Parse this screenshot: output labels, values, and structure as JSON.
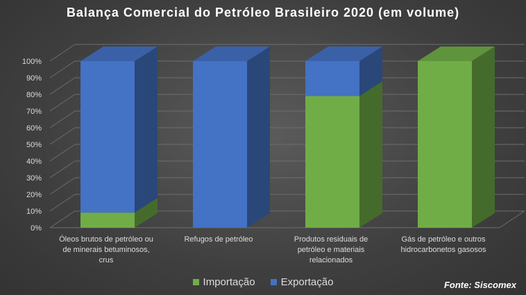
{
  "chart_data": {
    "type": "bar",
    "stacked": true,
    "three_d": true,
    "title": "Balança Comercial do Petróleo Brasileiro 2020 (em volume)",
    "categories": [
      [
        "Óleos brutos de petróleo ou",
        "de minerais betuminosos,",
        "crus"
      ],
      [
        "Refugos de petróleo"
      ],
      [
        "Produtos residuais de",
        "petróleo e materiais",
        "relacionados"
      ],
      [
        "Gás de petróleo e outros",
        "hidrocarbonetos gasosos"
      ]
    ],
    "series": [
      {
        "name": "Importação",
        "color": "#70ad47",
        "values": [
          9,
          0,
          79,
          100
        ]
      },
      {
        "name": "Exportação",
        "color": "#4472c4",
        "values": [
          91,
          100,
          21,
          0
        ]
      }
    ],
    "yticks": [
      "0%",
      "10%",
      "20%",
      "30%",
      "40%",
      "50%",
      "60%",
      "70%",
      "80%",
      "90%",
      "100%"
    ],
    "ylim": [
      0,
      100
    ],
    "grid": true,
    "legend_position": "bottom"
  },
  "source": "Fonte: Siscomex"
}
